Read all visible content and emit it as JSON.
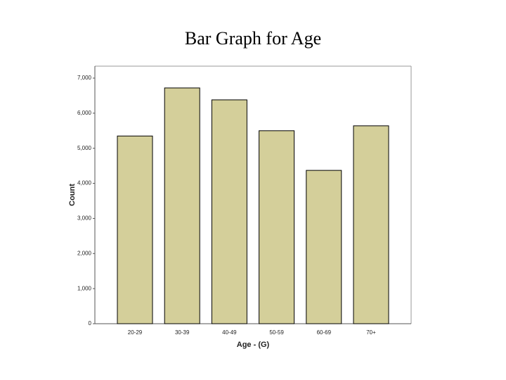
{
  "chart_data": {
    "type": "bar",
    "title": "Bar Graph for Age",
    "x_label": "Age - (G)",
    "y_label": "Count",
    "categories": [
      "20-29",
      "30-39",
      "40-49",
      "50-59",
      "60-69",
      "70+"
    ],
    "values": [
      5350,
      6720,
      6380,
      5500,
      4370,
      5640
    ],
    "color": "#d4cf9a",
    "ylim": [
      0,
      7000
    ],
    "yticks": [
      0,
      {
        "value": 1000,
        "label": "1,000"
      },
      {
        "value": 2000,
        "label": "2,000"
      },
      {
        "value": 3000,
        "label": "3,000"
      },
      {
        "value": 4000,
        "label": "4,000"
      },
      {
        "value": 5000,
        "label": "5,000"
      },
      {
        "value": 6000,
        "label": "6,000"
      },
      {
        "value": 7000,
        "label": "7,000"
      }
    ],
    "grid": false
  }
}
